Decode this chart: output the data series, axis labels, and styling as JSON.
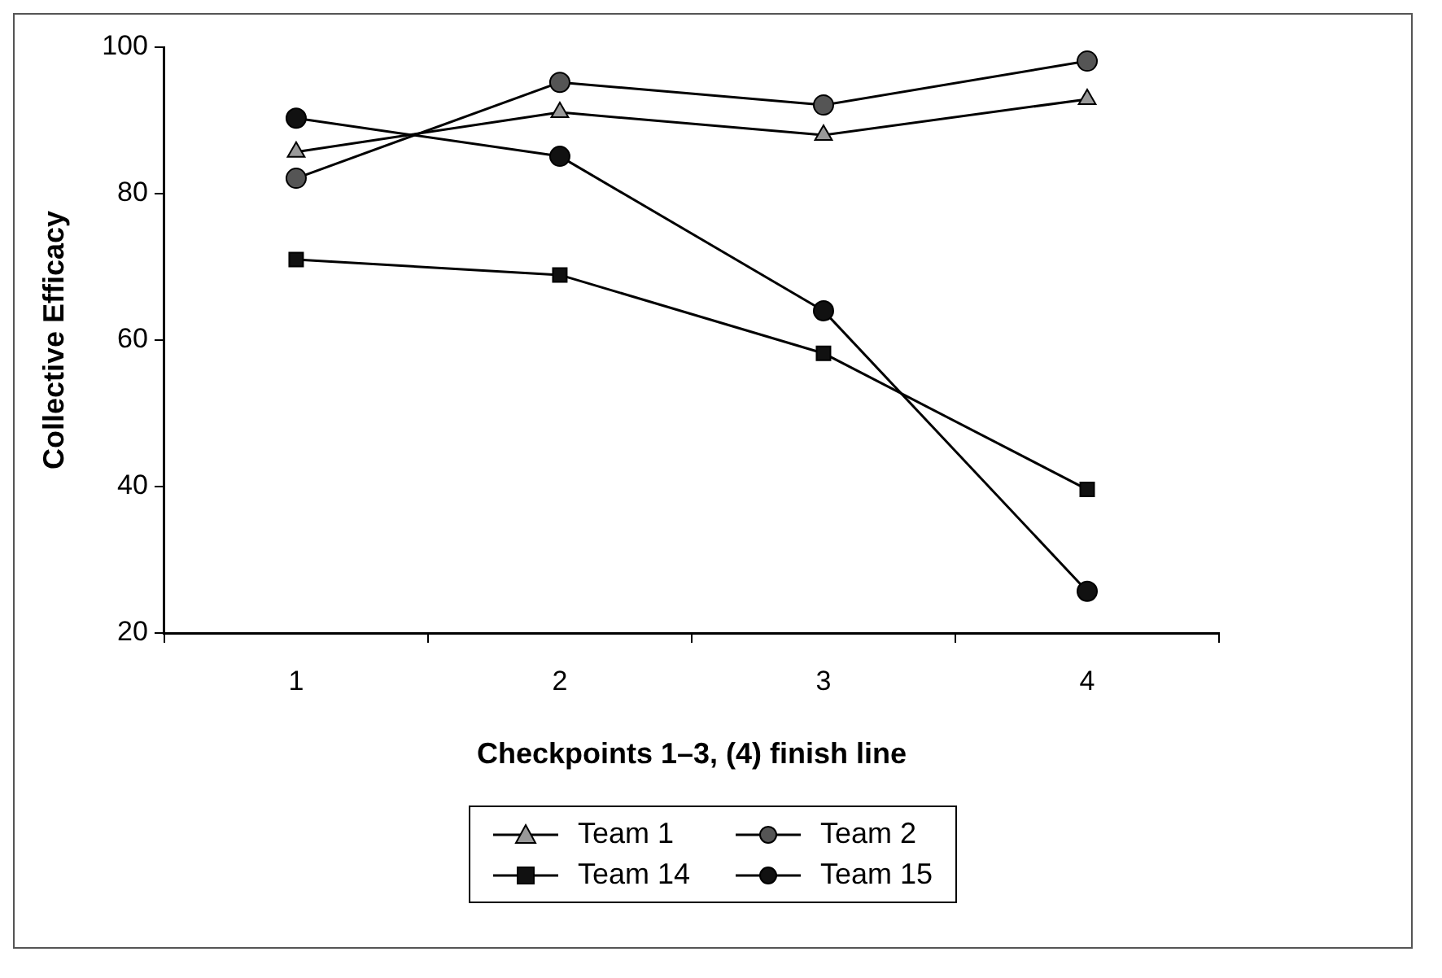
{
  "chart_data": {
    "type": "line",
    "xlabel": "Checkpoints 1–3, (4) finish line",
    "ylabel": "Collective Efficacy",
    "categories": [
      "1",
      "2",
      "3",
      "4"
    ],
    "series": [
      {
        "name": "Team 1",
        "color": "#999999",
        "marker": "triangle",
        "values": [
          85.7,
          91.1,
          88,
          92.9
        ]
      },
      {
        "name": "Team 2",
        "color": "#555555",
        "marker": "circle",
        "values": [
          82.1,
          95.2,
          92.1,
          98.1
        ]
      },
      {
        "name": "Team 14",
        "color": "#111111",
        "marker": "square",
        "values": [
          71,
          68.9,
          58.2,
          39.6
        ]
      },
      {
        "name": "Team 15",
        "color": "#111111",
        "marker": "circle",
        "values": [
          90.3,
          85.1,
          64,
          25.7
        ]
      }
    ],
    "ylim": [
      20,
      100
    ],
    "yticks": [
      20,
      40,
      60,
      80,
      100
    ],
    "grid": false,
    "legend": "bottom",
    "line_style": "solid"
  }
}
